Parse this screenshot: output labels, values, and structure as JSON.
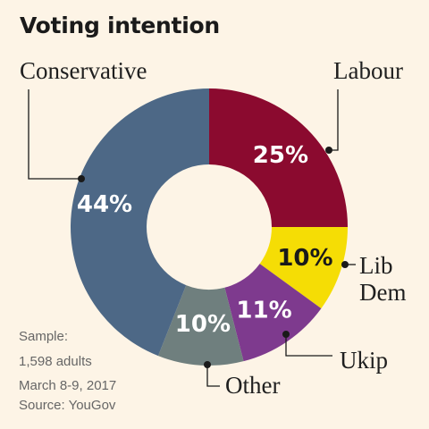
{
  "chart_data": {
    "type": "pie",
    "title": "Voting intention",
    "slices": [
      {
        "label": "Labour",
        "value": 25,
        "display": "25%",
        "color": "#8b0a2f",
        "text_color": "#ffffff"
      },
      {
        "label": "Lib Dem",
        "label_lines": [
          "Lib",
          "Dem"
        ],
        "value": 10,
        "display": "10%",
        "color": "#f5dd05",
        "text_color": "#1a1a1a"
      },
      {
        "label": "Ukip",
        "value": 11,
        "display": "11%",
        "color": "#7e3a8e",
        "text_color": "#ffffff"
      },
      {
        "label": "Other",
        "value": 10,
        "display": "10%",
        "color": "#6f7f7e",
        "text_color": "#ffffff"
      },
      {
        "label": "Conservative",
        "value": 44,
        "display": "44%",
        "color": "#4d6886",
        "text_color": "#ffffff"
      }
    ]
  },
  "notes": {
    "line1": "Sample:",
    "line2": "1,598 adults",
    "line3": "March 8-9, 2017",
    "line4": "Source: YouGov"
  }
}
